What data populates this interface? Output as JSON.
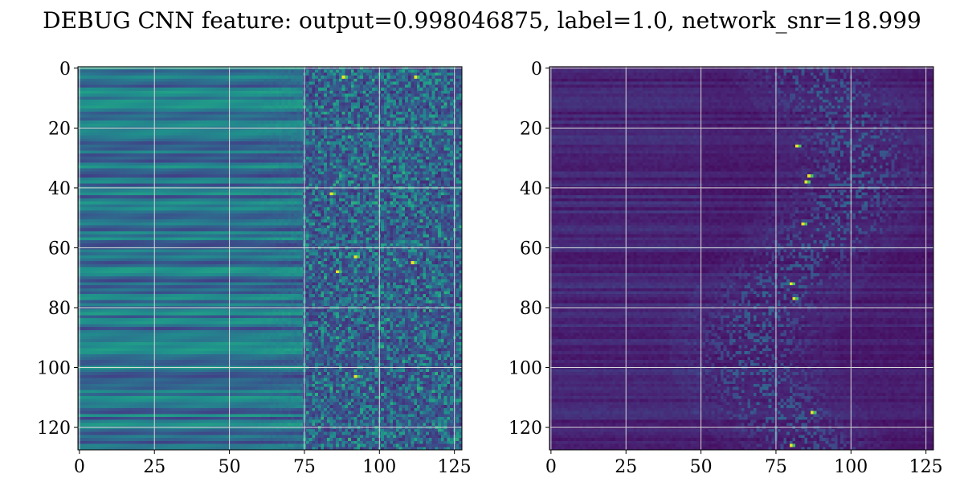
{
  "figure": {
    "title": "DEBUG CNN feature: output=0.998046875, label=1.0, network_snr=18.999"
  },
  "chart_data": [
    {
      "type": "heatmap",
      "colormap": "viridis",
      "shape": [
        128,
        128
      ],
      "grid": true,
      "xlim": [
        0,
        127
      ],
      "ylim": [
        127,
        0
      ],
      "x_ticks": [
        0,
        25,
        50,
        75,
        100,
        125
      ],
      "y_ticks": [
        0,
        20,
        40,
        60,
        80,
        100,
        120
      ],
      "x_tick_labels": [
        "0",
        "25",
        "50",
        "75",
        "100",
        "125"
      ],
      "y_tick_labels": [
        "0",
        "20",
        "40",
        "60",
        "80",
        "100",
        "120"
      ],
      "pattern": "left 75 columns: horizontal bands of roughly constant value per row (mid-range teal/blue); right columns 75-127: noisy speckle with bright yellow-green spots",
      "notable_bright_cells": [
        [
          3,
          88
        ],
        [
          3,
          112
        ],
        [
          42,
          84
        ],
        [
          63,
          92
        ],
        [
          65,
          111
        ],
        [
          68,
          86
        ],
        [
          103,
          92
        ]
      ]
    },
    {
      "type": "heatmap",
      "colormap": "viridis",
      "shape": [
        128,
        128
      ],
      "grid": true,
      "xlim": [
        0,
        127
      ],
      "ylim": [
        127,
        0
      ],
      "x_ticks": [
        0,
        25,
        50,
        75,
        100,
        125
      ],
      "y_ticks": [
        0,
        20,
        40,
        60,
        80,
        100,
        120
      ],
      "x_tick_labels": [
        "0",
        "25",
        "50",
        "75",
        "100",
        "125"
      ],
      "y_tick_labels": [
        "0",
        "20",
        "40",
        "60",
        "80",
        "100",
        "120"
      ],
      "pattern": "mostly dark purple; faint bands on the left; sparse bright streaks concentrated between columns 60 and 110 forming a curved track",
      "notable_bright_cells": [
        [
          26,
          82
        ],
        [
          36,
          86
        ],
        [
          38,
          85
        ],
        [
          52,
          84
        ],
        [
          72,
          80
        ],
        [
          77,
          81
        ],
        [
          115,
          87
        ],
        [
          126,
          80
        ]
      ]
    }
  ]
}
